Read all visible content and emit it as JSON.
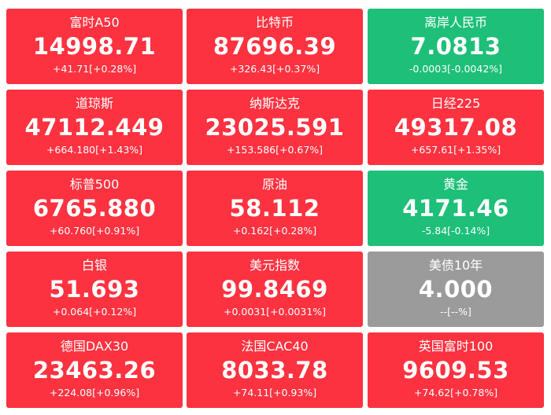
{
  "tiles": [
    {
      "name": "富时A50",
      "price": "14998.71",
      "change": "+41.71[+0.28%]",
      "trend": "up"
    },
    {
      "name": "比特币",
      "price": "87696.39",
      "change": "+326.43[+0.37%]",
      "trend": "up"
    },
    {
      "name": "离岸人民币",
      "price": "7.0813",
      "change": "-0.0003[-0.0042%]",
      "trend": "down"
    },
    {
      "name": "道琼斯",
      "price": "47112.449",
      "change": "+664.180[+1.43%]",
      "trend": "up"
    },
    {
      "name": "纳斯达克",
      "price": "23025.591",
      "change": "+153.586[+0.67%]",
      "trend": "up"
    },
    {
      "name": "日经225",
      "price": "49317.08",
      "change": "+657.61[+1.35%]",
      "trend": "up"
    },
    {
      "name": "标普500",
      "price": "6765.880",
      "change": "+60.760[+0.91%]",
      "trend": "up"
    },
    {
      "name": "原油",
      "price": "58.112",
      "change": "+0.162[+0.28%]",
      "trend": "up"
    },
    {
      "name": "黄金",
      "price": "4171.46",
      "change": "-5.84[-0.14%]",
      "trend": "down"
    },
    {
      "name": "白银",
      "price": "51.693",
      "change": "+0.064[+0.12%]",
      "trend": "up"
    },
    {
      "name": "美元指数",
      "price": "99.8469",
      "change": "+0.0031[+0.0031%]",
      "trend": "up"
    },
    {
      "name": "美债10年",
      "price": "4.000",
      "change": "--[--%]",
      "trend": "flat"
    },
    {
      "name": "德国DAX30",
      "price": "23463.26",
      "change": "+224.08[+0.96%]",
      "trend": "up"
    },
    {
      "name": "法国CAC40",
      "price": "8033.78",
      "change": "+74.11[+0.93%]",
      "trend": "up"
    },
    {
      "name": "英国富时100",
      "price": "9609.53",
      "change": "+74.62[+0.78%]",
      "trend": "up"
    }
  ],
  "colors": {
    "up": "#fc3240",
    "down": "#1dbf79",
    "flat": "#9b9b9b",
    "text": "#ffffff"
  }
}
